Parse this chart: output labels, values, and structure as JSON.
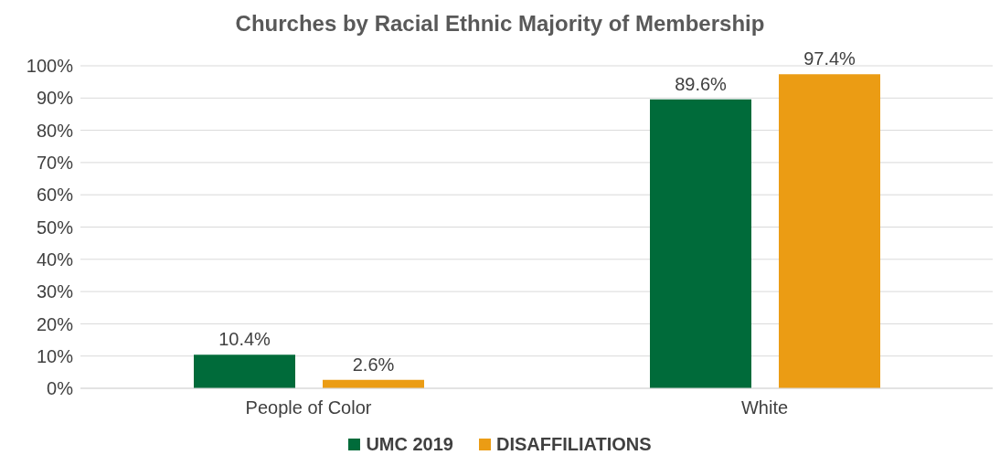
{
  "chart_data": {
    "type": "bar",
    "title": "Churches by Racial Ethnic Majority of Membership",
    "categories": [
      "People of Color",
      "White"
    ],
    "series": [
      {
        "name": "UMC 2019",
        "color": "#006b3a",
        "values": [
          10.4,
          89.6
        ],
        "value_labels": [
          "10.4%",
          "89.6%"
        ]
      },
      {
        "name": "DISAFFILIATIONS",
        "color": "#eb9c14",
        "values": [
          2.6,
          97.4
        ],
        "value_labels": [
          "2.6%",
          "97.4%"
        ]
      }
    ],
    "ylim": [
      0,
      100
    ],
    "yticks": [
      {
        "value": 0,
        "label": "0%"
      },
      {
        "value": 10,
        "label": "10%"
      },
      {
        "value": 20,
        "label": "20%"
      },
      {
        "value": 30,
        "label": "30%"
      },
      {
        "value": 40,
        "label": "40%"
      },
      {
        "value": 50,
        "label": "50%"
      },
      {
        "value": 60,
        "label": "60%"
      },
      {
        "value": 70,
        "label": "70%"
      },
      {
        "value": 80,
        "label": "80%"
      },
      {
        "value": 90,
        "label": "90%"
      },
      {
        "value": 100,
        "label": "100%"
      }
    ],
    "grid": "y",
    "legend": "bottom"
  }
}
